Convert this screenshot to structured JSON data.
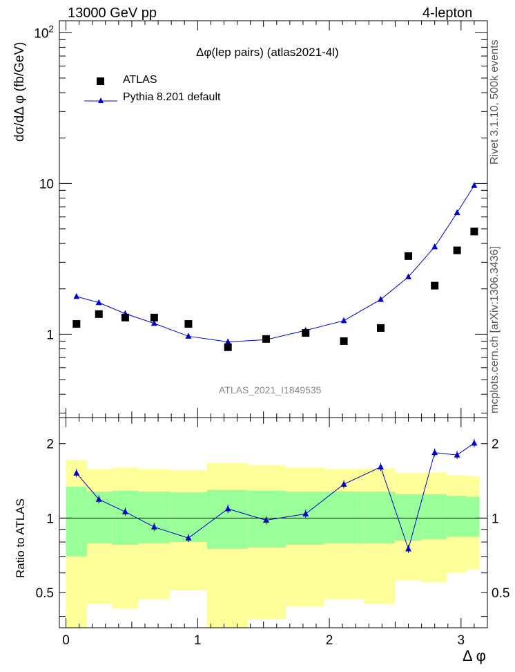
{
  "header": {
    "energy_label": "13000 GeV pp",
    "process_label": "4-lepton"
  },
  "side_labels": {
    "rivet": "Rivet 3.1.10,  500k events",
    "mcplots": "mcplots.cern.ch [arXiv:1306.3436]"
  },
  "colors": {
    "atlas": "#000000",
    "pythia": "#0000cc",
    "band_inner": "#99ff99",
    "band_outer": "#ffff99",
    "watermark": "#888888"
  },
  "chart_data": [
    {
      "type": "scatter",
      "title": "Δφ(lep pairs) (atlas2021-4l)",
      "ylabel": "dσ/dΔ φ (fb/GeV)",
      "xlabel": "",
      "yscale": "log",
      "xlim": [
        -0.05,
        3.2
      ],
      "ylim": [
        0.28,
        120
      ],
      "x_ticks": [
        {
          "v": 0,
          "label": "0"
        },
        {
          "v": 1,
          "label": "1"
        },
        {
          "v": 2,
          "label": "2"
        },
        {
          "v": 3,
          "label": "3"
        }
      ],
      "y_ticks": [
        {
          "v": 1,
          "label": "1"
        },
        {
          "v": 10,
          "label": "10"
        },
        {
          "v": 100,
          "label": "10",
          "sup": "2"
        }
      ],
      "legend": [
        {
          "name": "ATLAS",
          "marker": "square"
        },
        {
          "name": "Pythia 8.201 default",
          "marker": "triangle"
        }
      ],
      "watermark": "ATLAS_2021_I1849535",
      "series": [
        {
          "name": "ATLAS",
          "x": [
            0.08,
            0.25,
            0.45,
            0.67,
            0.93,
            1.23,
            1.52,
            1.82,
            2.11,
            2.39,
            2.6,
            2.8,
            2.97,
            3.1
          ],
          "y": [
            1.17,
            1.36,
            1.29,
            1.29,
            1.17,
            0.82,
            0.93,
            1.02,
            0.9,
            1.1,
            3.3,
            2.1,
            3.6,
            4.8
          ]
        },
        {
          "name": "Pythia 8.201 default",
          "x": [
            0.08,
            0.25,
            0.45,
            0.67,
            0.93,
            1.23,
            1.52,
            1.82,
            2.11,
            2.39,
            2.6,
            2.8,
            2.97,
            3.1
          ],
          "y": [
            1.78,
            1.62,
            1.37,
            1.18,
            0.97,
            0.89,
            0.92,
            1.06,
            1.23,
            1.7,
            2.4,
            3.8,
            6.4,
            9.7
          ]
        }
      ]
    },
    {
      "type": "line",
      "ylabel": "Ratio to ATLAS",
      "xlabel": "Δ φ",
      "yscale": "log",
      "xlim": [
        -0.05,
        3.2
      ],
      "ylim": [
        0.36,
        2.55
      ],
      "x_ticks": [
        {
          "v": 0,
          "label": "0"
        },
        {
          "v": 1,
          "label": "1"
        },
        {
          "v": 2,
          "label": "2"
        },
        {
          "v": 3,
          "label": "3"
        }
      ],
      "y_ticks": [
        {
          "v": 0.5,
          "label": "0.5"
        },
        {
          "v": 1,
          "label": "1"
        },
        {
          "v": 2,
          "label": "2"
        }
      ],
      "reference_line": 1,
      "bins": [
        {
          "lo": 0.0,
          "hi": 0.16,
          "inner": [
            0.7,
            1.34
          ],
          "outer": [
            0.36,
            1.72
          ]
        },
        {
          "lo": 0.16,
          "hi": 0.35,
          "inner": [
            0.79,
            1.28
          ],
          "outer": [
            0.45,
            1.58
          ]
        },
        {
          "lo": 0.35,
          "hi": 0.55,
          "inner": [
            0.78,
            1.29
          ],
          "outer": [
            0.43,
            1.6
          ]
        },
        {
          "lo": 0.55,
          "hi": 0.79,
          "inner": [
            0.79,
            1.28
          ],
          "outer": [
            0.47,
            1.58
          ]
        },
        {
          "lo": 0.79,
          "hi": 1.07,
          "inner": [
            0.8,
            1.27
          ],
          "outer": [
            0.51,
            1.56
          ]
        },
        {
          "lo": 1.07,
          "hi": 1.38,
          "inner": [
            0.75,
            1.3
          ],
          "outer": [
            0.36,
            1.67
          ]
        },
        {
          "lo": 1.38,
          "hi": 1.67,
          "inner": [
            0.76,
            1.29
          ],
          "outer": [
            0.39,
            1.64
          ]
        },
        {
          "lo": 1.67,
          "hi": 1.96,
          "inner": [
            0.78,
            1.28
          ],
          "outer": [
            0.44,
            1.6
          ]
        },
        {
          "lo": 1.96,
          "hi": 2.26,
          "inner": [
            0.79,
            1.28
          ],
          "outer": [
            0.47,
            1.58
          ]
        },
        {
          "lo": 2.26,
          "hi": 2.5,
          "inner": [
            0.79,
            1.28
          ],
          "outer": [
            0.45,
            1.59
          ]
        },
        {
          "lo": 2.5,
          "hi": 2.7,
          "inner": [
            0.81,
            1.25
          ],
          "outer": [
            0.56,
            1.52
          ]
        },
        {
          "lo": 2.7,
          "hi": 2.89,
          "inner": [
            0.82,
            1.25
          ],
          "outer": [
            0.55,
            1.53
          ]
        },
        {
          "lo": 2.89,
          "hi": 3.04,
          "inner": [
            0.84,
            1.23
          ],
          "outer": [
            0.6,
            1.49
          ]
        },
        {
          "lo": 3.04,
          "hi": 3.14,
          "inner": [
            0.84,
            1.22
          ],
          "outer": [
            0.62,
            1.48
          ]
        }
      ],
      "series": [
        {
          "name": "Pythia 8.201 default",
          "x": [
            0.08,
            0.25,
            0.45,
            0.67,
            0.93,
            1.23,
            1.52,
            1.82,
            2.11,
            2.39,
            2.6,
            2.8,
            2.97,
            3.1
          ],
          "y": [
            1.52,
            1.19,
            1.06,
            0.92,
            0.83,
            1.09,
            0.98,
            1.04,
            1.37,
            1.61,
            0.75,
            1.84,
            1.8,
            2.01
          ]
        }
      ]
    }
  ]
}
